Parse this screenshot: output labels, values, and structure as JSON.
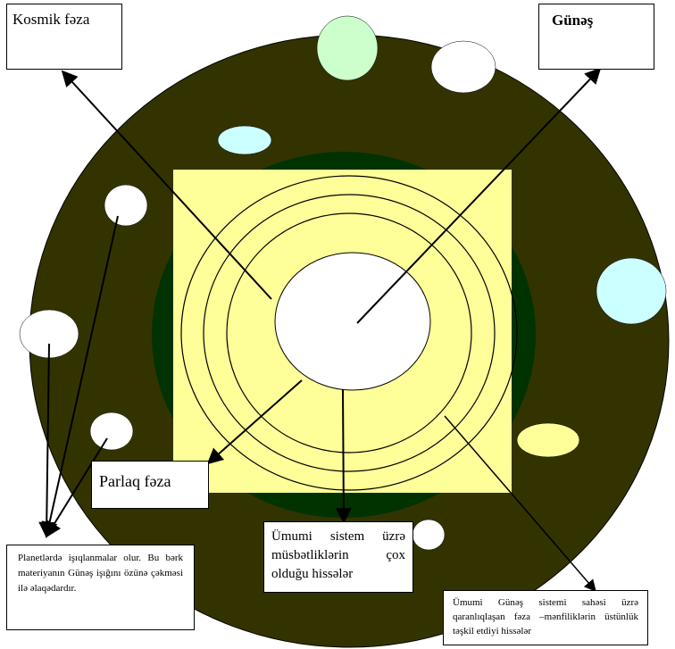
{
  "labels": {
    "kosmik_faza": "Kosmik fəza",
    "gunes": "Günəş",
    "parlaq_faza": "Parlaq fəza",
    "umumi_sistem": "Ümumi sistem üzrə müsbətliklərin çox olduğu hissələr",
    "planetler": "Planetlərdə işıqlanmalar olur. Bu bərk materiyanın Günəş işığını özünə çəkməsi ilə əlaqədardır.",
    "qaranliq": "Ümumi Günəş sistemi sahəsi üzrə qaranlıqlaşan fəza –mənfiliklərin üstünlük təşkil etdiyi hissələr"
  },
  "colors": {
    "outer_disk": "#333300",
    "inner_disk": "#003300",
    "square": "#ffff99",
    "center": "#ffffff",
    "planet_light_green": "#ccffcc",
    "planet_light_cyan": "#ccffff",
    "planet_white": "#ffffff",
    "planet_yellow": "#ffff99",
    "outline": "#000000"
  }
}
